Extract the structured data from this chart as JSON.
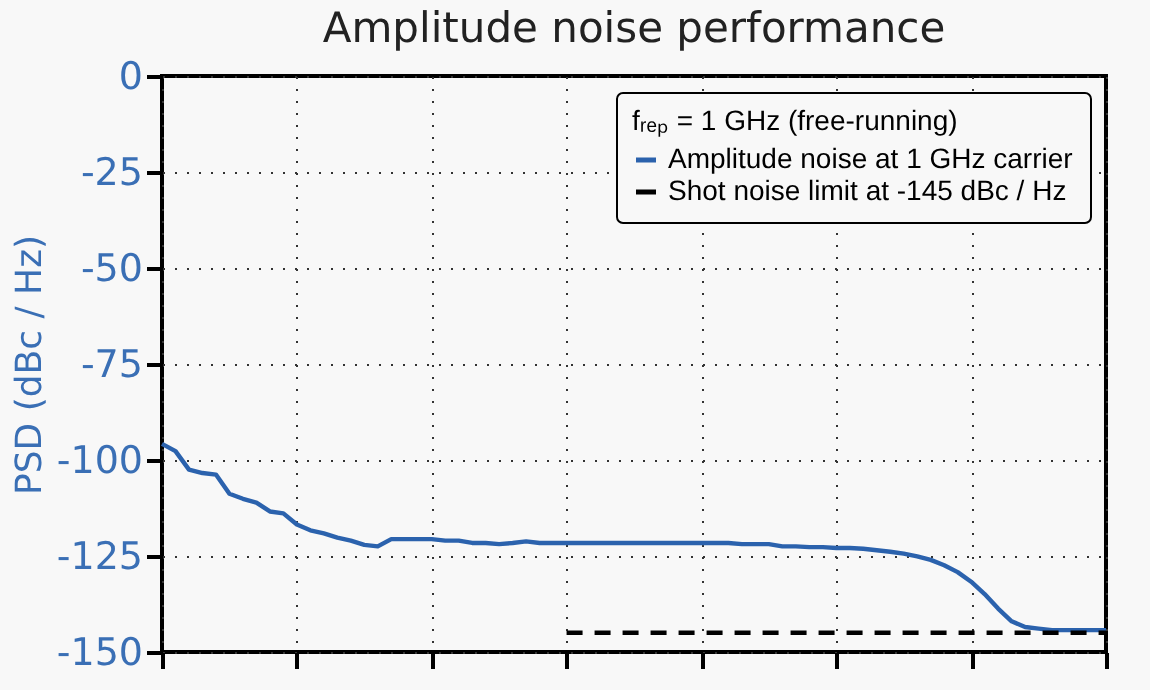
{
  "chart_data": {
    "type": "line",
    "title": "Amplitude noise performance",
    "ylabel": "PSD (dBc / Hz)",
    "legend_title": "fᵣₑₚ = 1 GHz (free-running)",
    "legend": "top right",
    "grid": true,
    "tick_labels": "y",
    "ylim": [
      -150,
      0
    ],
    "yticks": [
      0,
      -25,
      -50,
      -75,
      -100,
      -125,
      -150
    ],
    "categories": [
      null,
      null,
      null,
      null,
      null,
      null,
      null,
      null,
      null,
      null,
      null,
      null,
      null,
      null,
      null,
      null,
      null,
      null,
      null,
      null,
      null,
      null,
      null,
      null,
      null,
      null,
      null,
      null,
      null,
      null,
      null,
      null,
      null,
      null,
      null,
      null,
      null,
      null,
      null,
      null,
      null,
      null,
      null,
      null,
      null,
      null,
      null,
      null,
      null,
      null,
      null,
      null,
      null,
      null,
      null,
      null,
      null,
      null,
      null,
      null,
      null,
      null,
      null,
      null,
      null,
      null,
      null,
      null,
      null,
      null,
      null
    ],
    "series": [
      {
        "name": "Amplitude noise at 1 GHz carrier",
        "color": "#2b62ad",
        "line_style": "solid",
        "values": [
          -95.8,
          -97.7,
          -102.5,
          -103.4,
          -103.8,
          -108.8,
          -110.1,
          -111.1,
          -113.4,
          -113.9,
          -116.8,
          -118.3,
          -119.1,
          -120.2,
          -121,
          -122.1,
          -122.5,
          -120.6,
          -120.6,
          -120.6,
          -120.6,
          -121,
          -121,
          -121.6,
          -121.6,
          -121.9,
          -121.6,
          -121.2,
          -121.6,
          -121.6,
          -121.6,
          -121.6,
          -121.6,
          -121.6,
          -121.6,
          -121.6,
          -121.6,
          -121.6,
          -121.6,
          -121.6,
          -121.6,
          -121.6,
          -121.6,
          -121.9,
          -121.9,
          -121.9,
          -122.5,
          -122.5,
          -122.7,
          -122.7,
          -122.9,
          -122.9,
          -123.1,
          -123.5,
          -123.9,
          -124.4,
          -125.1,
          -126,
          -127.4,
          -129.2,
          -131.7,
          -134.9,
          -138.7,
          -142,
          -143.5,
          -143.9,
          -144.3,
          -144.3,
          -144.3,
          -144.3,
          -144.3
        ]
      },
      {
        "name": "Shot noise limit at -145 dBc / Hz",
        "color": "#000000",
        "line_style": "dashed",
        "values": [
          null,
          null,
          null,
          null,
          null,
          null,
          null,
          null,
          null,
          null,
          null,
          null,
          null,
          null,
          null,
          null,
          null,
          null,
          null,
          null,
          null,
          null,
          null,
          null,
          null,
          null,
          null,
          null,
          null,
          null,
          -145,
          -145,
          -145,
          -145,
          -145,
          -145,
          -145,
          -145,
          -145,
          -145,
          -145,
          -145,
          -145,
          -145,
          -145,
          -145,
          -145,
          -145,
          -145,
          -145,
          -145,
          -145,
          -145,
          -145,
          -145,
          -145,
          -145,
          -145,
          -145,
          -145,
          -145,
          -145,
          -145,
          -145,
          -145,
          -145,
          -145,
          -145,
          -145,
          -145,
          -145
        ]
      }
    ]
  }
}
